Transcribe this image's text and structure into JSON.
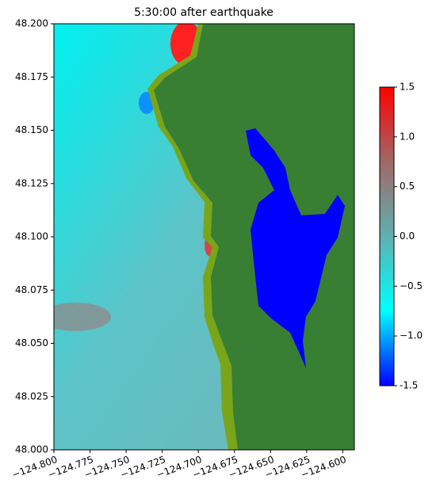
{
  "chart_data": {
    "type": "map",
    "title": "5:30:00 after earthquake",
    "xlim": [
      -124.8,
      -124.592
    ],
    "xticks": [
      {
        "value": -124.8,
        "label": "−124.800"
      },
      {
        "value": -124.775,
        "label": "−124.775"
      },
      {
        "value": -124.75,
        "label": "−124.750"
      },
      {
        "value": -124.725,
        "label": "−124.725"
      },
      {
        "value": -124.7,
        "label": "−124.700"
      },
      {
        "value": -124.675,
        "label": "−124.675"
      },
      {
        "value": -124.65,
        "label": "−124.650"
      },
      {
        "value": -124.625,
        "label": "−124.625"
      },
      {
        "value": -124.6,
        "label": "−124.600"
      }
    ],
    "ylim": [
      48.0,
      48.2
    ],
    "yticks": [
      {
        "value": 48.0,
        "label": "48.000"
      },
      {
        "value": 48.025,
        "label": "48.025"
      },
      {
        "value": 48.05,
        "label": "48.050"
      },
      {
        "value": 48.075,
        "label": "48.075"
      },
      {
        "value": 48.1,
        "label": "48.100"
      },
      {
        "value": 48.125,
        "label": "48.125"
      },
      {
        "value": 48.15,
        "label": "48.150"
      },
      {
        "value": 48.175,
        "label": "48.175"
      },
      {
        "value": 48.2,
        "label": "48.200"
      }
    ],
    "colorbar": {
      "lim": [
        -1.5,
        1.5
      ],
      "colors": [
        "#0000ff",
        "#00ffff",
        "#5fb0b0",
        "#a06868",
        "#ff0000"
      ],
      "ticks": [
        -1.5,
        {
          "value": -1.0,
          "label": "−1.0"
        },
        {
          "value": -0.5,
          "label": "−0.5"
        },
        {
          "value": 0.0,
          "label": "0.0"
        },
        0.5,
        {
          "value": 1.0,
          "label": "1.0"
        },
        1.5
      ]
    }
  }
}
